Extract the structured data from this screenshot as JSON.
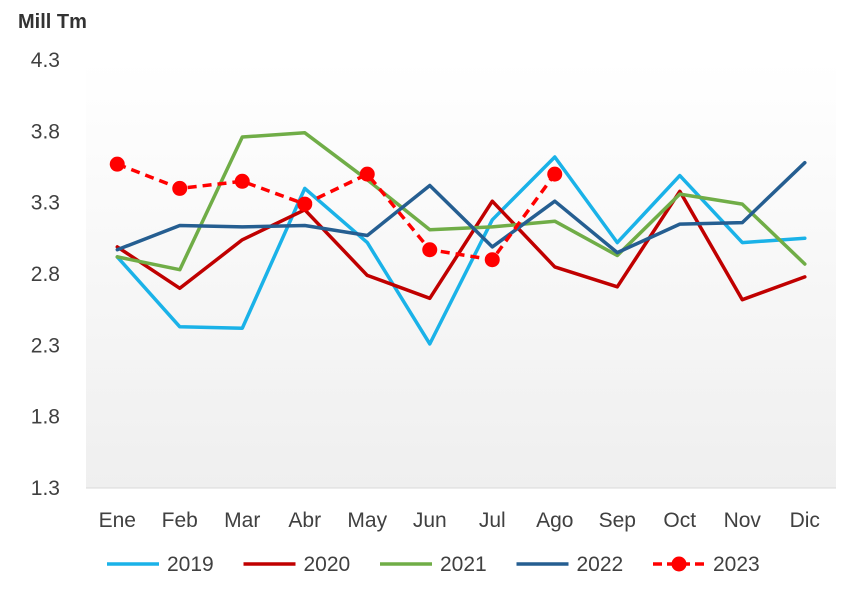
{
  "chart_data": {
    "type": "line",
    "unit_label": "Mill Tm",
    "categories": [
      "Ene",
      "Feb",
      "Mar",
      "Abr",
      "May",
      "Jun",
      "Jul",
      "Ago",
      "Sep",
      "Oct",
      "Nov",
      "Dic"
    ],
    "y_ticks": [
      "4.3",
      "3.8",
      "3.3",
      "2.8",
      "2.3",
      "1.8",
      "1.3"
    ],
    "ylim": [
      1.3,
      4.3
    ],
    "grid": false,
    "legend_position": "bottom",
    "series": [
      {
        "name": "2019",
        "color": "#1ab2e8",
        "dashed": false,
        "markers": false,
        "values": [
          2.92,
          2.43,
          2.42,
          3.4,
          3.02,
          2.31,
          3.18,
          3.62,
          3.02,
          3.49,
          3.02,
          3.05
        ]
      },
      {
        "name": "2020",
        "color": "#c00000",
        "dashed": false,
        "markers": false,
        "values": [
          2.99,
          2.7,
          3.04,
          3.25,
          2.79,
          2.63,
          3.31,
          2.85,
          2.71,
          3.38,
          2.62,
          2.78
        ]
      },
      {
        "name": "2021",
        "color": "#70ad47",
        "dashed": false,
        "markers": false,
        "values": [
          2.92,
          2.83,
          3.76,
          3.79,
          3.46,
          3.11,
          3.13,
          3.17,
          2.93,
          3.36,
          3.29,
          2.87
        ]
      },
      {
        "name": "2022",
        "color": "#255e91",
        "dashed": false,
        "markers": false,
        "values": [
          2.97,
          3.14,
          3.13,
          3.14,
          3.07,
          3.42,
          2.99,
          3.31,
          2.95,
          3.15,
          3.16,
          3.58
        ]
      },
      {
        "name": "2023",
        "color": "#ff0000",
        "dashed": true,
        "markers": true,
        "values": [
          3.57,
          3.4,
          3.45,
          3.29,
          3.5,
          2.97,
          2.9,
          3.5,
          null,
          null,
          null,
          null
        ]
      }
    ]
  }
}
